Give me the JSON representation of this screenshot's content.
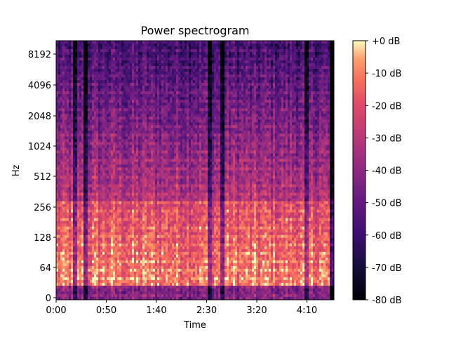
{
  "chart_data": {
    "type": "heatmap",
    "title": "Power spectrogram",
    "xlabel": "Time",
    "ylabel": "Hz",
    "x_scale": "time",
    "y_scale": "log-like (librosa 'log' frequency axis, linear below 64 Hz)",
    "colormap": "magma",
    "xlim": [
      "0:00",
      "4:35"
    ],
    "ylim": [
      0,
      11025
    ],
    "x_ticks": [
      "0:00",
      "0:50",
      "1:40",
      "2:30",
      "3:20",
      "4:10"
    ],
    "y_ticks": [
      "0",
      "64",
      "128",
      "256",
      "512",
      "1024",
      "2048",
      "4096",
      "8192"
    ],
    "colorbar": {
      "label_ticks": [
        "+0 dB",
        "-10 dB",
        "-20 dB",
        "-30 dB",
        "-40 dB",
        "-50 dB",
        "-60 dB",
        "-70 dB",
        "-80 dB"
      ],
      "range_db": [
        -80,
        0
      ]
    },
    "grid": false,
    "description_of_content": {
      "low_freq_power_db": -15,
      "mid_freq_power_db": -35,
      "high_freq_power_db": -60,
      "quiet_columns_time": [
        "0:18",
        "0:28",
        "2:32",
        "2:45",
        "4:08"
      ]
    }
  }
}
